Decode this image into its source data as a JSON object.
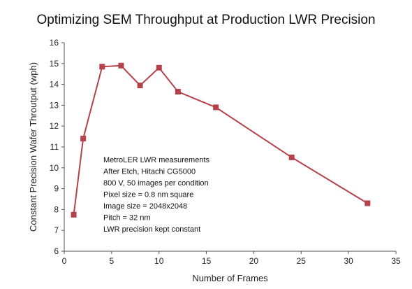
{
  "chart_data": {
    "type": "line",
    "title": "Optimizing SEM Throughput at Production LWR Precision",
    "xlabel": "Number of Frames",
    "ylabel": "Constant Precision Wafer Throutput (wph)",
    "xlim": [
      0,
      35
    ],
    "ylim": [
      6,
      16
    ],
    "xticks": [
      0,
      5,
      10,
      15,
      20,
      25,
      30,
      35
    ],
    "yticks": [
      6,
      7,
      8,
      9,
      10,
      11,
      12,
      13,
      14,
      15,
      16
    ],
    "grid": false,
    "series": [
      {
        "x": [
          1,
          2,
          4,
          6,
          8,
          10,
          12,
          16,
          24,
          32
        ],
        "y": [
          7.75,
          11.4,
          14.85,
          14.9,
          13.95,
          14.8,
          13.65,
          12.9,
          10.5,
          8.3
        ],
        "color": "#b5424a",
        "marker": "square"
      }
    ],
    "annotations": [
      "MetroLER LWR measurements",
      "After Etch, Hitachi CG5000",
      "800 V, 50 images per condition",
      "Pixel size = 0.8 nm square",
      "Image size = 2048x2048",
      "Pitch = 32 nm",
      "LWR precision kept constant"
    ]
  }
}
